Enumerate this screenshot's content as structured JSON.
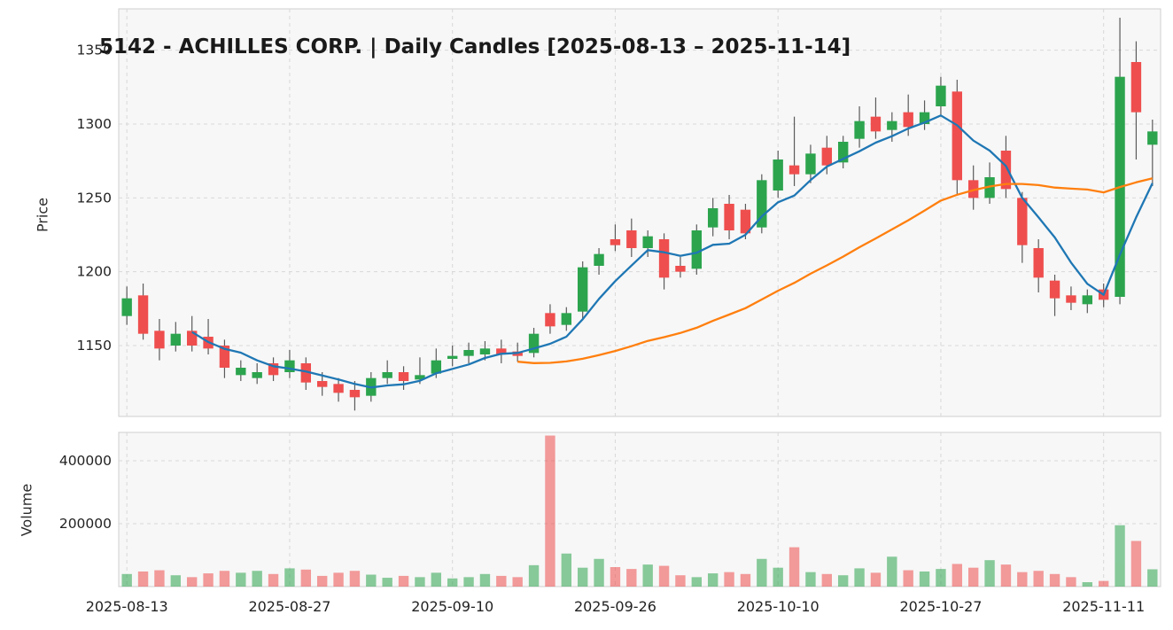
{
  "title": "5142 - ACHILLES CORP. | Daily Candles [2025-08-13 – 2025-11-14]",
  "axes": {
    "price_label": "Price",
    "volume_label": "Volume"
  },
  "chart_data": {
    "type": "candlestick",
    "title": "5142 - ACHILLES CORP. | Daily Candles [2025-08-13 – 2025-11-14]",
    "ylabel": "Price",
    "ylabel_volume": "Volume",
    "price_ticks": [
      1150,
      1200,
      1250,
      1300,
      1350
    ],
    "volume_ticks": [
      200000,
      400000
    ],
    "price_range": [
      1102,
      1378
    ],
    "volume_range": [
      0,
      490000
    ],
    "x_tick_indices": [
      0,
      10,
      20,
      30,
      40,
      50,
      60
    ],
    "x_tick_labels": [
      "2025-08-13",
      "2025-08-27",
      "2025-09-10",
      "2025-09-26",
      "2025-10-10",
      "2025-10-27",
      "2025-11-11"
    ],
    "grid": true,
    "legend": "none",
    "moving_averages": [
      {
        "name": "ma-short",
        "window": 5,
        "color": "#1f77b4"
      },
      {
        "name": "ma-long",
        "window": 25,
        "color": "#ff7f0e"
      }
    ],
    "colors": {
      "up": "#2ca44e",
      "down": "#ef4e4e",
      "wick": "#4a4a4a",
      "grid": "#d8d8d8",
      "panel_bg": "#f7f7f7",
      "panel_border": "#cfcfcf",
      "text": "#222222"
    },
    "candles": {
      "columns": [
        "date",
        "open",
        "high",
        "low",
        "close",
        "volume"
      ],
      "rows": [
        [
          "2025-08-13",
          1170,
          1190,
          1164,
          1182,
          40000
        ],
        [
          "2025-08-14",
          1184,
          1192,
          1154,
          1158,
          48000
        ],
        [
          "2025-08-15",
          1160,
          1168,
          1140,
          1148,
          52000
        ],
        [
          "2025-08-18",
          1150,
          1166,
          1146,
          1158,
          36000
        ],
        [
          "2025-08-19",
          1160,
          1170,
          1146,
          1150,
          30000
        ],
        [
          "2025-08-20",
          1156,
          1168,
          1144,
          1148,
          42000
        ],
        [
          "2025-08-21",
          1150,
          1154,
          1128,
          1135,
          50000
        ],
        [
          "2025-08-22",
          1130,
          1140,
          1126,
          1135,
          44000
        ],
        [
          "2025-08-25",
          1128,
          1138,
          1124,
          1132,
          50000
        ],
        [
          "2025-08-26",
          1138,
          1142,
          1126,
          1130,
          40000
        ],
        [
          "2025-08-27",
          1132,
          1147,
          1128,
          1140,
          58000
        ],
        [
          "2025-08-28",
          1138,
          1142,
          1120,
          1125,
          54000
        ],
        [
          "2025-08-29",
          1126,
          1132,
          1116,
          1122,
          34000
        ],
        [
          "2025-09-01",
          1124,
          1128,
          1112,
          1118,
          44000
        ],
        [
          "2025-09-02",
          1120,
          1126,
          1106,
          1115,
          50000
        ],
        [
          "2025-09-03",
          1116,
          1132,
          1112,
          1128,
          38000
        ],
        [
          "2025-09-04",
          1128,
          1140,
          1124,
          1132,
          28000
        ],
        [
          "2025-09-05",
          1132,
          1136,
          1120,
          1126,
          34000
        ],
        [
          "2025-09-08",
          1127,
          1142,
          1124,
          1130,
          30000
        ],
        [
          "2025-09-09",
          1131,
          1148,
          1128,
          1140,
          44000
        ],
        [
          "2025-09-10",
          1141,
          1150,
          1136,
          1143,
          26000
        ],
        [
          "2025-09-11",
          1143,
          1152,
          1138,
          1147,
          30000
        ],
        [
          "2025-09-12",
          1144,
          1153,
          1140,
          1148,
          40000
        ],
        [
          "2025-09-16",
          1148,
          1154,
          1138,
          1144,
          34000
        ],
        [
          "2025-09-17",
          1146,
          1152,
          1139,
          1143,
          30000
        ],
        [
          "2025-09-18",
          1145,
          1162,
          1142,
          1158,
          68000
        ],
        [
          "2025-09-19",
          1172,
          1178,
          1158,
          1163,
          480000
        ],
        [
          "2025-09-22",
          1164,
          1176,
          1160,
          1172,
          105000
        ],
        [
          "2025-09-24",
          1173,
          1207,
          1168,
          1203,
          60000
        ],
        [
          "2025-09-25",
          1204,
          1216,
          1198,
          1212,
          88000
        ],
        [
          "2025-09-26",
          1222,
          1232,
          1214,
          1218,
          62000
        ],
        [
          "2025-09-29",
          1228,
          1236,
          1210,
          1216,
          56000
        ],
        [
          "2025-09-30",
          1216,
          1228,
          1210,
          1224,
          70000
        ],
        [
          "2025-10-01",
          1222,
          1226,
          1188,
          1196,
          66000
        ],
        [
          "2025-10-02",
          1204,
          1210,
          1196,
          1200,
          36000
        ],
        [
          "2025-10-03",
          1202,
          1232,
          1198,
          1228,
          30000
        ],
        [
          "2025-10-06",
          1230,
          1250,
          1224,
          1243,
          42000
        ],
        [
          "2025-10-07",
          1246,
          1252,
          1222,
          1228,
          46000
        ],
        [
          "2025-10-08",
          1242,
          1246,
          1222,
          1226,
          40000
        ],
        [
          "2025-10-09",
          1230,
          1266,
          1226,
          1262,
          88000
        ],
        [
          "2025-10-10",
          1255,
          1282,
          1250,
          1276,
          60000
        ],
        [
          "2025-10-14",
          1272,
          1305,
          1258,
          1266,
          125000
        ],
        [
          "2025-10-15",
          1266,
          1286,
          1260,
          1280,
          46000
        ],
        [
          "2025-10-16",
          1284,
          1292,
          1266,
          1272,
          40000
        ],
        [
          "2025-10-17",
          1274,
          1292,
          1270,
          1288,
          36000
        ],
        [
          "2025-10-20",
          1290,
          1312,
          1284,
          1302,
          58000
        ],
        [
          "2025-10-21",
          1305,
          1318,
          1290,
          1295,
          44000
        ],
        [
          "2025-10-22",
          1296,
          1308,
          1288,
          1302,
          95000
        ],
        [
          "2025-10-23",
          1308,
          1320,
          1292,
          1298,
          52000
        ],
        [
          "2025-10-24",
          1300,
          1316,
          1296,
          1308,
          48000
        ],
        [
          "2025-10-27",
          1312,
          1332,
          1306,
          1326,
          56000
        ],
        [
          "2025-10-28",
          1322,
          1330,
          1252,
          1262,
          72000
        ],
        [
          "2025-10-29",
          1262,
          1272,
          1242,
          1250,
          60000
        ],
        [
          "2025-10-30",
          1250,
          1274,
          1246,
          1264,
          84000
        ],
        [
          "2025-10-31",
          1282,
          1292,
          1250,
          1256,
          70000
        ],
        [
          "2025-11-04",
          1250,
          1254,
          1206,
          1218,
          46000
        ],
        [
          "2025-11-05",
          1216,
          1222,
          1186,
          1196,
          50000
        ],
        [
          "2025-11-06",
          1194,
          1198,
          1170,
          1182,
          40000
        ],
        [
          "2025-11-07",
          1184,
          1190,
          1174,
          1179,
          30000
        ],
        [
          "2025-11-10",
          1178,
          1188,
          1172,
          1184,
          14000
        ],
        [
          "2025-11-11",
          1188,
          1192,
          1176,
          1181,
          18000
        ],
        [
          "2025-11-12",
          1183,
          1372,
          1178,
          1332,
          195000
        ],
        [
          "2025-11-13",
          1342,
          1356,
          1276,
          1308,
          145000
        ],
        [
          "2025-11-14",
          1286,
          1303,
          1258,
          1295,
          55000
        ]
      ]
    }
  }
}
